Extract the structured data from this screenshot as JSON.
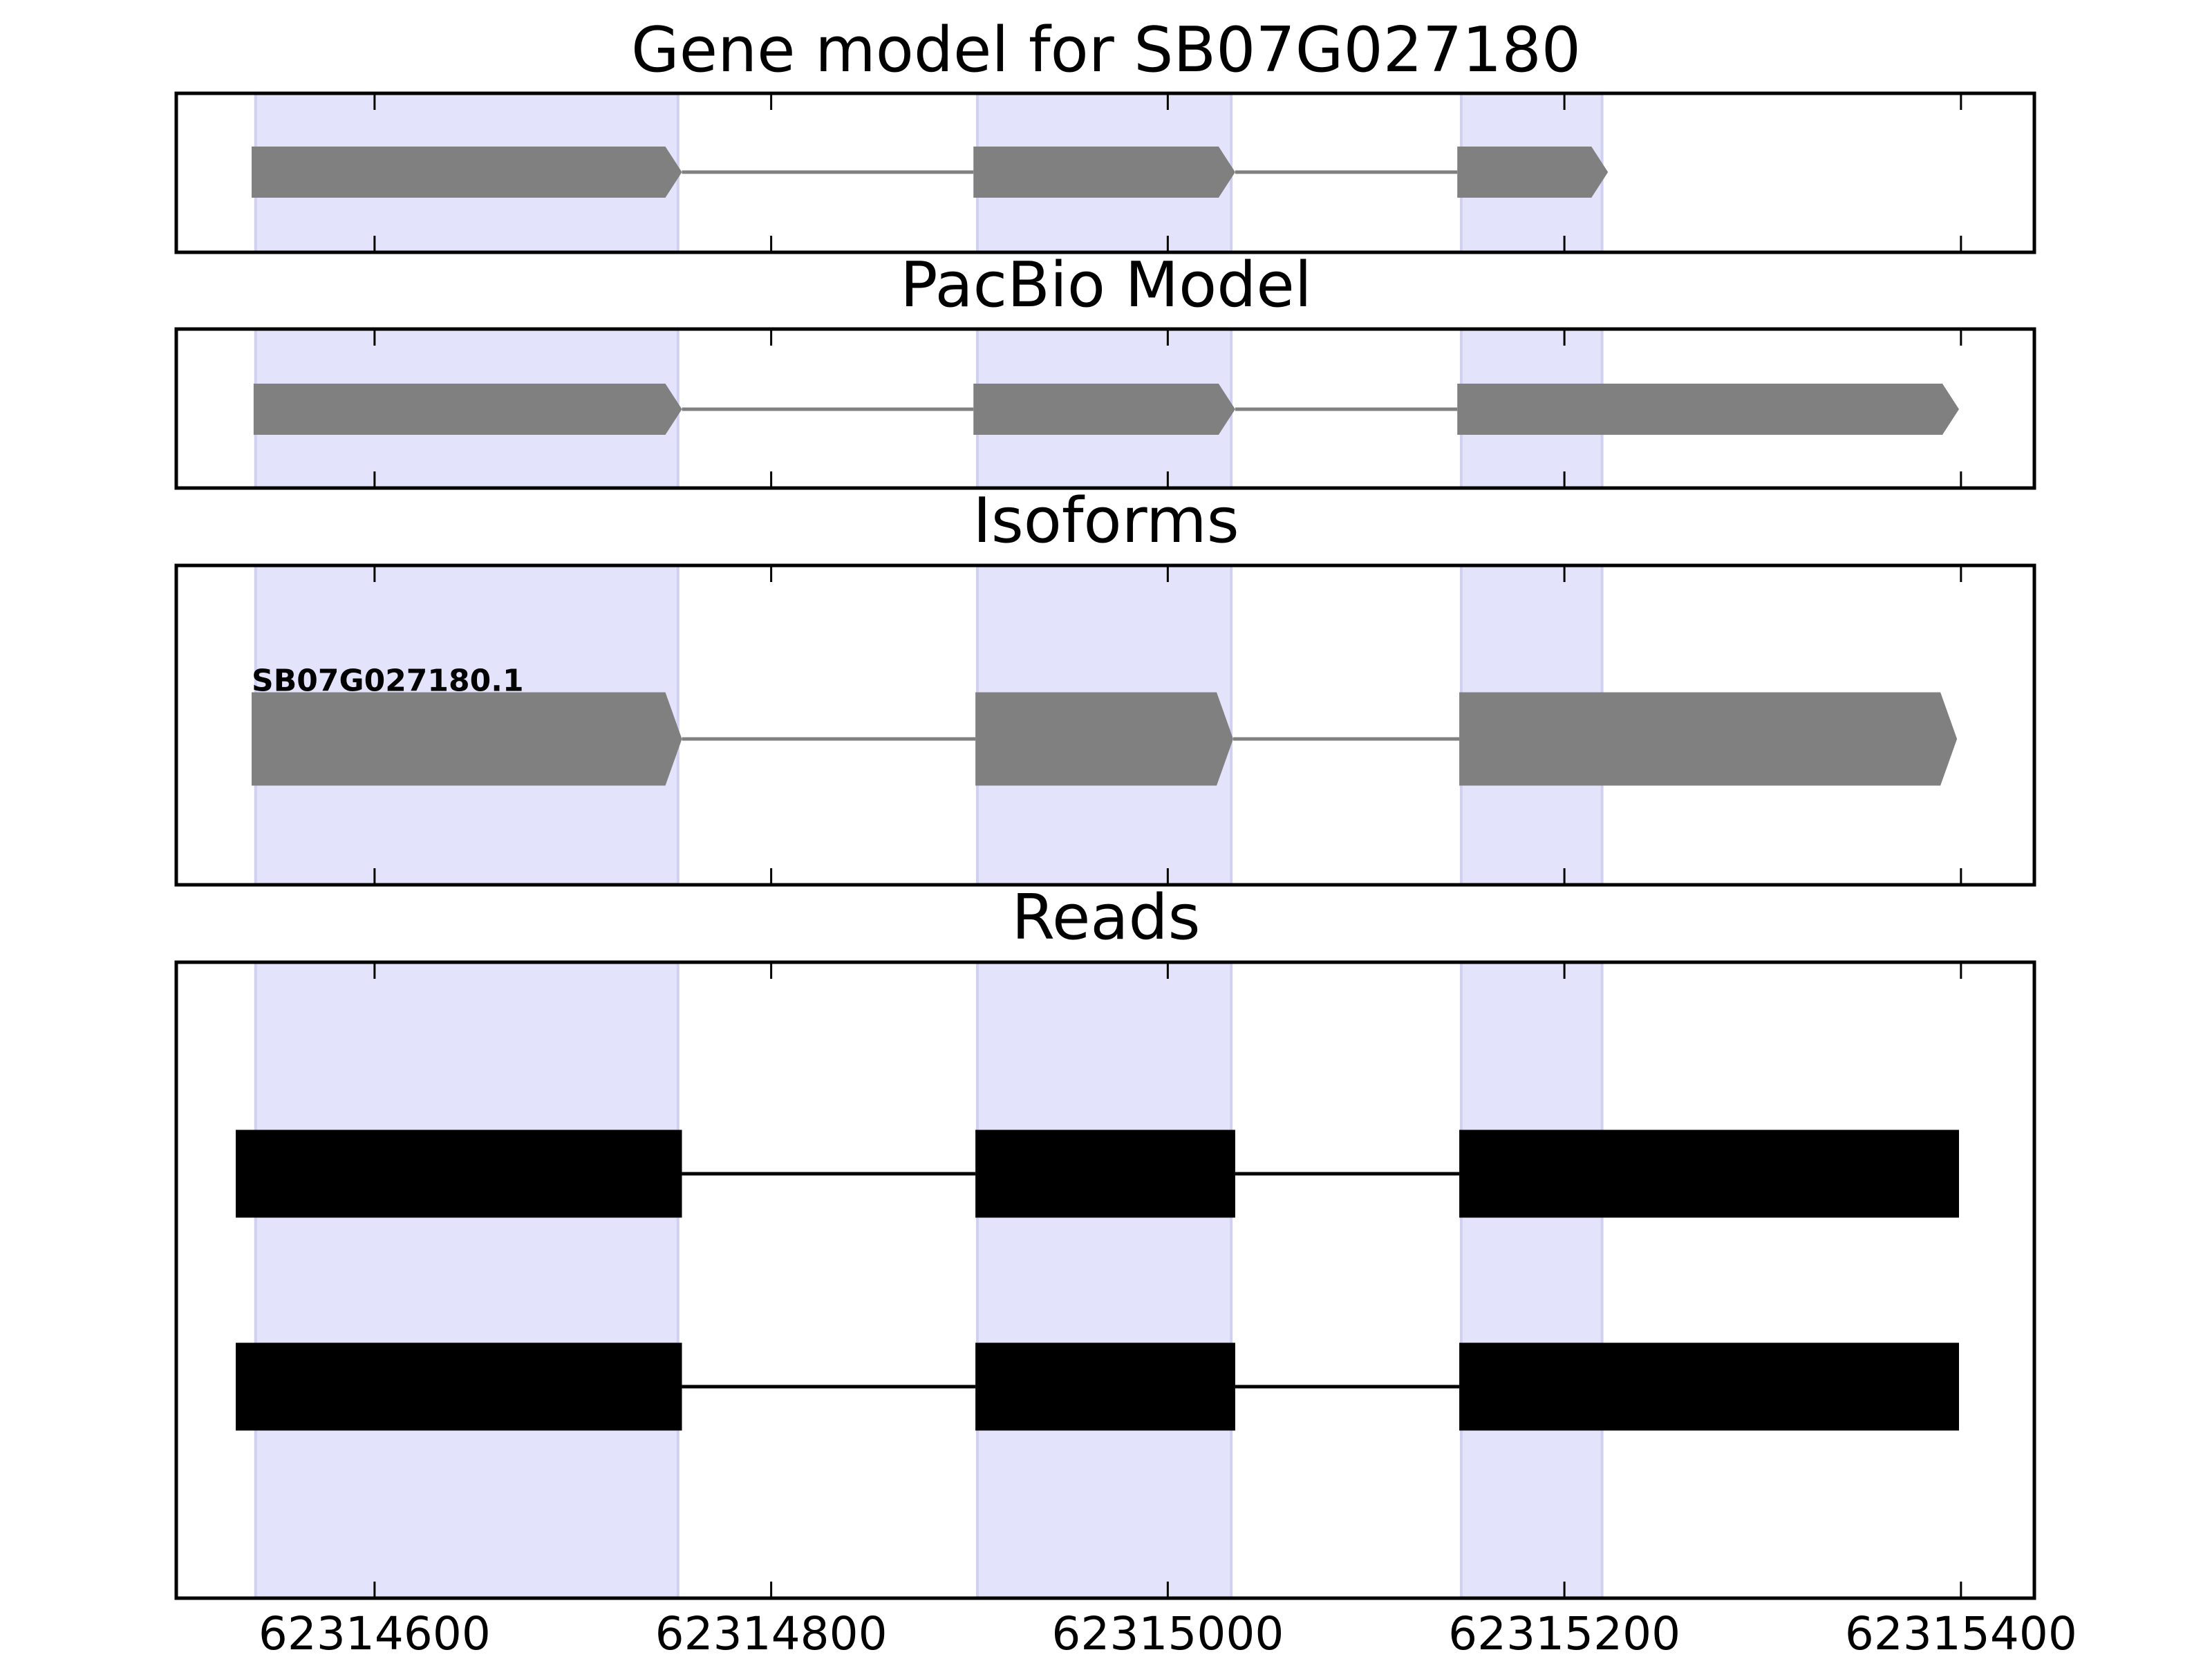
{
  "chart_data": {
    "type": "genemodel",
    "xlim": [
      62314500,
      62315437
    ],
    "xticks": [
      62314600,
      62314800,
      62315000,
      62315200,
      62315400
    ],
    "highlights": [
      [
        62314540,
        62314753
      ],
      [
        62314904,
        62315032
      ],
      [
        62315148,
        62315219
      ]
    ],
    "highlight_color": "#e3e3fb",
    "panels": [
      {
        "title": "Gene model for SB07G027180",
        "kind": "arrow",
        "color": "#808080",
        "features": [
          {
            "exons": [
              [
                62314538,
                62314755
              ],
              [
                62314902,
                62315034
              ],
              [
                62315146,
                62315222
              ]
            ]
          }
        ]
      },
      {
        "title": "PacBio Model",
        "kind": "arrow",
        "color": "#808080",
        "features": [
          {
            "exons": [
              [
                62314539,
                62314755
              ],
              [
                62314902,
                62315034
              ],
              [
                62315146,
                62315399
              ]
            ]
          }
        ]
      },
      {
        "title": "Isoforms",
        "kind": "arrow",
        "color": "#808080",
        "features": [
          {
            "label": "SB07G027180.1",
            "exons": [
              [
                62314538,
                62314755
              ],
              [
                62314903,
                62315033
              ],
              [
                62315147,
                62315398
              ]
            ]
          }
        ]
      },
      {
        "title": "Reads",
        "kind": "box",
        "color": "#000000",
        "features": [
          {
            "exons": [
              [
                62314530,
                62314755
              ],
              [
                62314903,
                62315034
              ],
              [
                62315147,
                62315399
              ]
            ]
          },
          {
            "exons": [
              [
                62314530,
                62314755
              ],
              [
                62314903,
                62315034
              ],
              [
                62315147,
                62315399
              ]
            ]
          }
        ]
      }
    ]
  }
}
